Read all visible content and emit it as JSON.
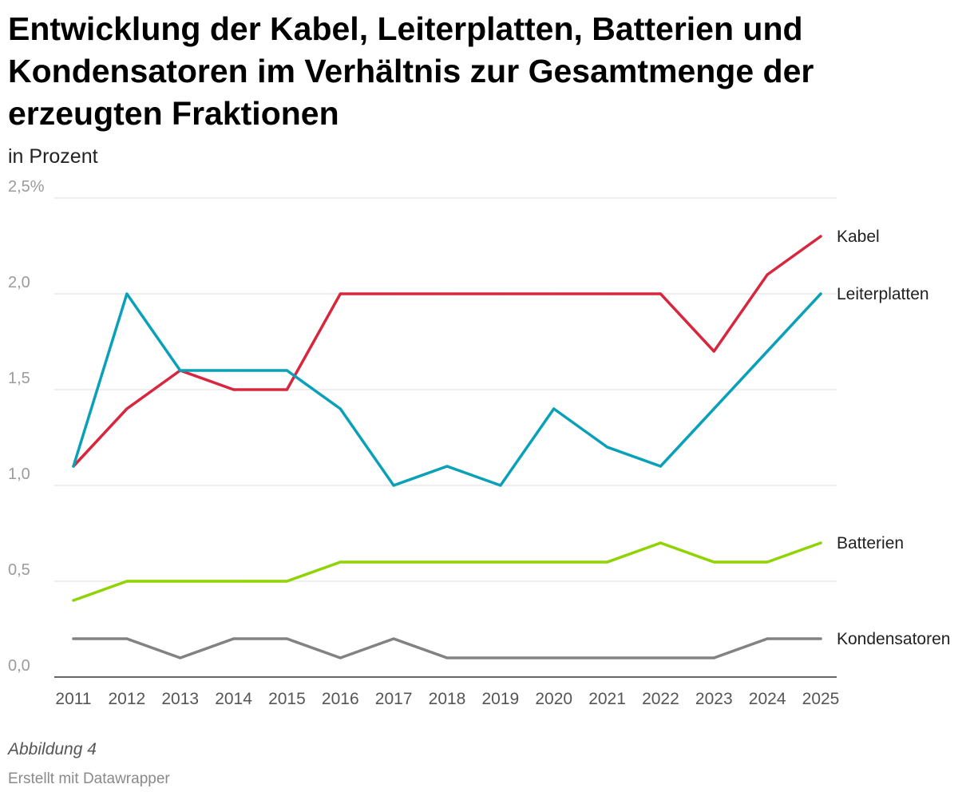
{
  "header": {
    "title": "Entwicklung der Kabel, Leiterplatten, Batterien und Kondensatoren im Verhältnis zur Gesamtmenge der erzeugten Fraktionen",
    "subtitle": "in Prozent"
  },
  "footer": {
    "figure_label": "Abbildung 4",
    "credit": "Erstellt mit Datawrapper"
  },
  "chart_data": {
    "type": "line",
    "title": "Entwicklung der Kabel, Leiterplatten, Batterien und Kondensatoren im Verhältnis zur Gesamtmenge der erzeugten Fraktionen",
    "subtitle": "in Prozent",
    "x": [
      "2011",
      "2012",
      "2013",
      "2014",
      "2015",
      "2016",
      "2017",
      "2018",
      "2019",
      "2020",
      "2021",
      "2022",
      "2023",
      "2024",
      "2025"
    ],
    "ylim": [
      0,
      2.5
    ],
    "yticks": [
      0,
      0.5,
      1.0,
      1.5,
      2.0,
      2.5
    ],
    "ytick_labels": [
      "0,0",
      "0,5",
      "1,0",
      "1,5",
      "2,0",
      "2,5%"
    ],
    "grid": true,
    "legend": "direct labels at line ends (right)",
    "series": [
      {
        "name": "Kabel",
        "color": "#d7263d",
        "values": [
          1.1,
          1.4,
          1.6,
          1.5,
          1.5,
          2.0,
          2.0,
          2.0,
          2.0,
          2.0,
          2.0,
          2.0,
          1.7,
          2.1,
          2.3
        ]
      },
      {
        "name": "Leiterplatten",
        "color": "#0aa1b8",
        "values": [
          1.1,
          2.0,
          1.6,
          1.6,
          1.6,
          1.4,
          1.0,
          1.1,
          1.0,
          1.4,
          1.2,
          1.1,
          1.4,
          1.7,
          2.0
        ]
      },
      {
        "name": "Batterien",
        "color": "#8fd400",
        "values": [
          0.4,
          0.5,
          0.5,
          0.5,
          0.5,
          0.6,
          0.6,
          0.6,
          0.6,
          0.6,
          0.6,
          0.7,
          0.6,
          0.6,
          0.7
        ]
      },
      {
        "name": "Kondensatoren",
        "color": "#828282",
        "values": [
          0.2,
          0.2,
          0.1,
          0.2,
          0.2,
          0.1,
          0.2,
          0.1,
          0.1,
          0.1,
          0.1,
          0.1,
          0.1,
          0.2,
          0.2
        ]
      }
    ]
  }
}
